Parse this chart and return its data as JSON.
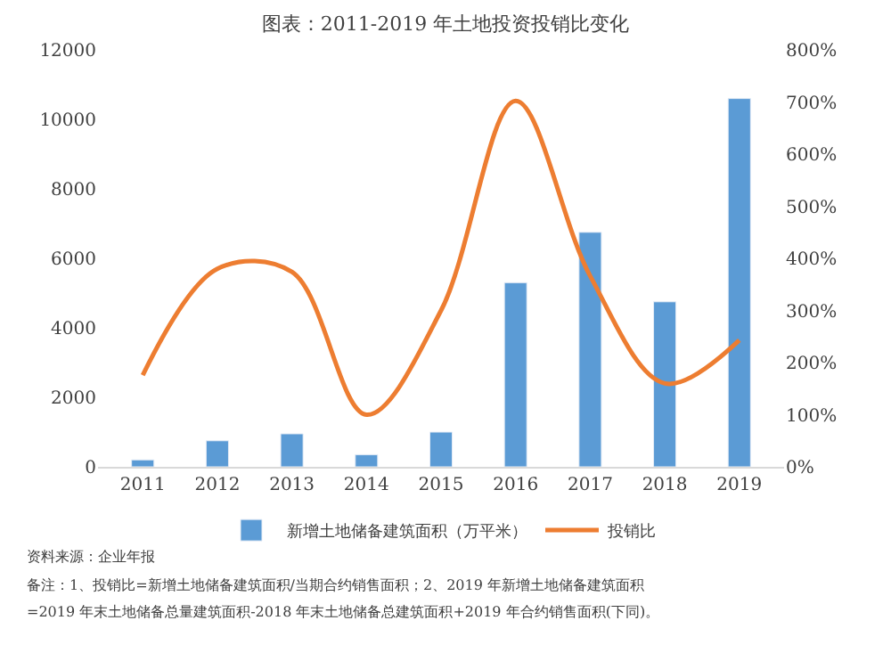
{
  "chart_data": {
    "type": "bar",
    "title": "图表：2011-2019 年土地投资投销比变化",
    "categories": [
      "2011",
      "2012",
      "2013",
      "2014",
      "2015",
      "2016",
      "2017",
      "2018",
      "2019"
    ],
    "series": [
      {
        "name": "新增土地储备建筑面积（万平米）",
        "color": "#5b9bd5",
        "values": [
          200,
          750,
          950,
          350,
          1000,
          5300,
          6750,
          4750,
          10600
        ]
      },
      {
        "name": "投销比",
        "color": "#ed7d31",
        "type": "line",
        "axis": "y2",
        "values": [
          176,
          380,
          374,
          100,
          300,
          702,
          366,
          160,
          243
        ]
      }
    ],
    "ylim": [
      0,
      12000
    ],
    "yticks": [
      0,
      2000,
      4000,
      6000,
      8000,
      10000,
      12000
    ],
    "y2lim": [
      0,
      800
    ],
    "y2ticks": [
      {
        "value": 0,
        "label": "0%"
      },
      {
        "value": 100,
        "label": "100%"
      },
      {
        "value": 200,
        "label": "200%"
      },
      {
        "value": 300,
        "label": "300%"
      },
      {
        "value": 400,
        "label": "400%"
      },
      {
        "value": 500,
        "label": "500%"
      },
      {
        "value": 600,
        "label": "600%"
      },
      {
        "value": 700,
        "label": "700%"
      },
      {
        "value": 800,
        "label": "800%"
      }
    ],
    "legend": "bottom",
    "marker": "none",
    "line_style": "solid",
    "annotations": [
      "资料来源：企业年报",
      "备注：1、投销比=新增土地储备建筑面积/当期合约销售面积；2、2019 年新增土地储备建筑面积",
      "=2019 年末土地储备总量建筑面积-2018 年末土地储备总建筑面积+2019 年合约销售面积(下同)。"
    ]
  }
}
